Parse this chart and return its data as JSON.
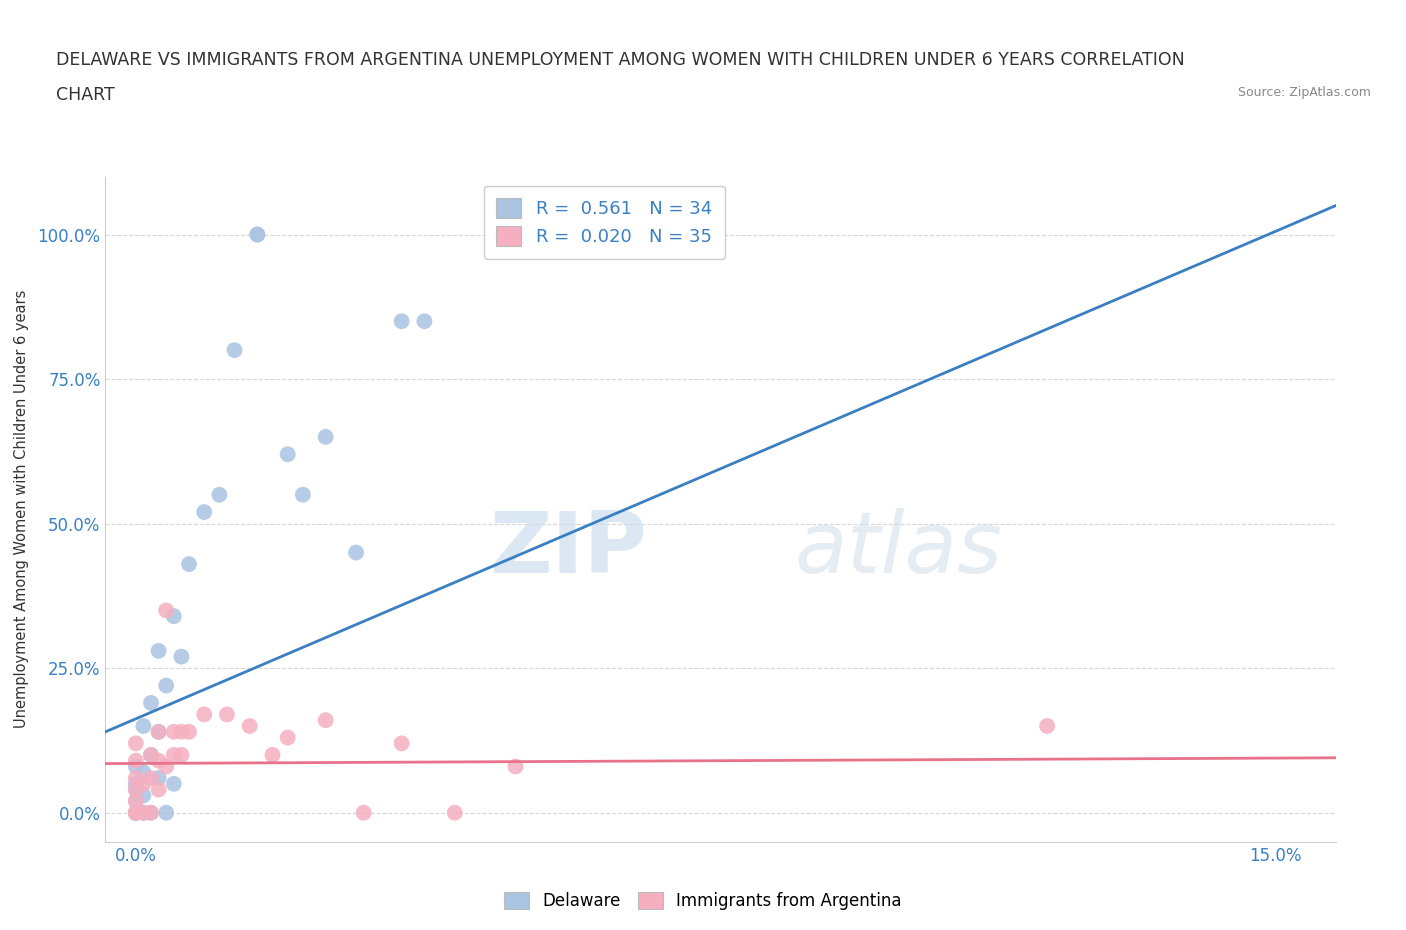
{
  "title_line1": "DELAWARE VS IMMIGRANTS FROM ARGENTINA UNEMPLOYMENT AMONG WOMEN WITH CHILDREN UNDER 6 YEARS CORRELATION",
  "title_line2": "CHART",
  "source": "Source: ZipAtlas.com",
  "ylabel": "Unemployment Among Women with Children Under 6 years",
  "xlabel": "",
  "y_ticks": [
    0.0,
    0.25,
    0.5,
    0.75,
    1.0
  ],
  "y_tick_labels": [
    "0.0%",
    "25.0%",
    "50.0%",
    "75.0%",
    "100.0%"
  ],
  "x_tick_positions": [
    0.0,
    0.05,
    0.1,
    0.15
  ],
  "x_tick_labels": [
    "0.0%",
    "",
    "",
    "15.0%"
  ],
  "xlim": [
    -0.004,
    0.158
  ],
  "ylim": [
    -0.05,
    1.1
  ],
  "R_delaware": 0.561,
  "N_delaware": 34,
  "R_argentina": 0.02,
  "N_argentina": 35,
  "delaware_color": "#aac4e2",
  "argentina_color": "#f5afc0",
  "delaware_line_color": "#3a7fc1",
  "argentina_line_color": "#e8728a",
  "legend_label_delaware": "Delaware",
  "legend_label_argentina": "Immigrants from Argentina",
  "watermark_zip": "ZIP",
  "watermark_atlas": "atlas",
  "background_color": "#ffffff",
  "grid_color": "#cccccc",
  "delaware_points_x": [
    0.0,
    0.0,
    0.0,
    0.0,
    0.0,
    0.0,
    0.0,
    0.001,
    0.001,
    0.001,
    0.001,
    0.002,
    0.002,
    0.002,
    0.003,
    0.003,
    0.003,
    0.004,
    0.004,
    0.005,
    0.005,
    0.006,
    0.007,
    0.009,
    0.011,
    0.013,
    0.016,
    0.016,
    0.02,
    0.022,
    0.025,
    0.029,
    0.035,
    0.038
  ],
  "delaware_points_y": [
    0.0,
    0.0,
    0.0,
    0.02,
    0.04,
    0.05,
    0.08,
    0.0,
    0.03,
    0.07,
    0.15,
    0.0,
    0.1,
    0.19,
    0.06,
    0.14,
    0.28,
    0.0,
    0.22,
    0.05,
    0.34,
    0.27,
    0.43,
    0.52,
    0.55,
    0.8,
    1.0,
    1.0,
    0.62,
    0.55,
    0.65,
    0.45,
    0.85,
    0.85
  ],
  "argentina_points_x": [
    0.0,
    0.0,
    0.0,
    0.0,
    0.0,
    0.0,
    0.0,
    0.0,
    0.0,
    0.001,
    0.001,
    0.002,
    0.002,
    0.002,
    0.003,
    0.003,
    0.003,
    0.004,
    0.004,
    0.005,
    0.005,
    0.006,
    0.006,
    0.007,
    0.009,
    0.012,
    0.015,
    0.018,
    0.02,
    0.025,
    0.03,
    0.035,
    0.042,
    0.05,
    0.12
  ],
  "argentina_points_y": [
    0.0,
    0.0,
    0.0,
    0.0,
    0.02,
    0.04,
    0.06,
    0.09,
    0.12,
    0.0,
    0.05,
    0.0,
    0.06,
    0.1,
    0.04,
    0.09,
    0.14,
    0.08,
    0.35,
    0.1,
    0.14,
    0.1,
    0.14,
    0.14,
    0.17,
    0.17,
    0.15,
    0.1,
    0.13,
    0.16,
    0.0,
    0.12,
    0.0,
    0.08,
    0.15
  ],
  "delaware_line_x0": -0.004,
  "delaware_line_y0": 0.14,
  "delaware_line_x1": 0.158,
  "delaware_line_y1": 1.05,
  "argentina_line_x0": -0.004,
  "argentina_line_y0": 0.085,
  "argentina_line_x1": 0.158,
  "argentina_line_y1": 0.095
}
